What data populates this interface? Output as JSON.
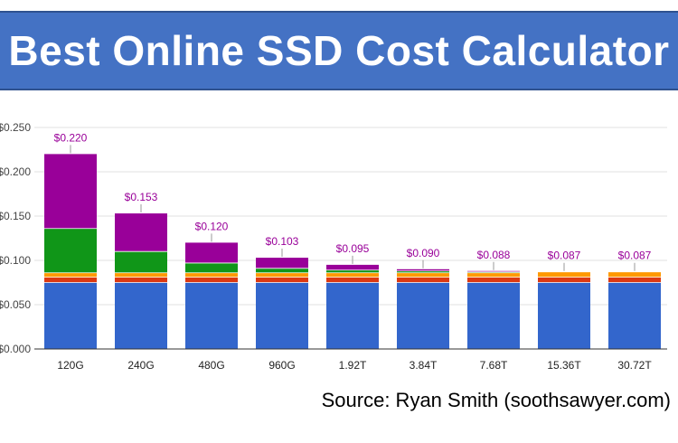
{
  "header": {
    "title": "Best Online SSD Cost Calculator"
  },
  "footer": {
    "source": "Source: Ryan Smith (soothsawyer.com)"
  },
  "chart_data": {
    "type": "bar",
    "stacked": true,
    "title": "",
    "xlabel": "",
    "ylabel": "",
    "ylim": [
      0,
      0.25
    ],
    "y_ticks": [
      "$0.000",
      "$0.050",
      "$0.100",
      "$0.150",
      "$0.200",
      "$0.250"
    ],
    "y_tick_values": [
      0,
      0.05,
      0.1,
      0.15,
      0.2,
      0.25
    ],
    "grid": true,
    "legend": "none",
    "categories": [
      "120G",
      "240G",
      "480G",
      "960G",
      "1.92T",
      "3.84T",
      "7.68T",
      "15.36T",
      "30.72T"
    ],
    "totals": [
      0.22,
      0.153,
      0.12,
      0.103,
      0.095,
      0.09,
      0.088,
      0.087,
      0.087
    ],
    "total_labels": [
      "$0.220",
      "$0.153",
      "$0.120",
      "$0.103",
      "$0.095",
      "$0.090",
      "$0.088",
      "$0.087",
      "$0.087"
    ],
    "total_label_color": "#990099",
    "series": [
      {
        "color": "#3366cc",
        "values": [
          0.075,
          0.075,
          0.075,
          0.075,
          0.075,
          0.075,
          0.075,
          0.075,
          0.075
        ]
      },
      {
        "color": "#dc3912",
        "values": [
          0.006,
          0.006,
          0.006,
          0.006,
          0.006,
          0.006,
          0.006,
          0.006,
          0.006
        ]
      },
      {
        "color": "#ff9900",
        "values": [
          0.005,
          0.005,
          0.005,
          0.005,
          0.005,
          0.005,
          0.005,
          0.006,
          0.006
        ]
      },
      {
        "color": "#109618",
        "values": [
          0.05,
          0.024,
          0.011,
          0.005,
          0.003,
          0.002,
          0.001,
          0.0,
          0.0
        ]
      },
      {
        "color": "#990099",
        "values": [
          0.084,
          0.043,
          0.023,
          0.012,
          0.006,
          0.002,
          0.001,
          0.0,
          0.0
        ]
      }
    ]
  }
}
